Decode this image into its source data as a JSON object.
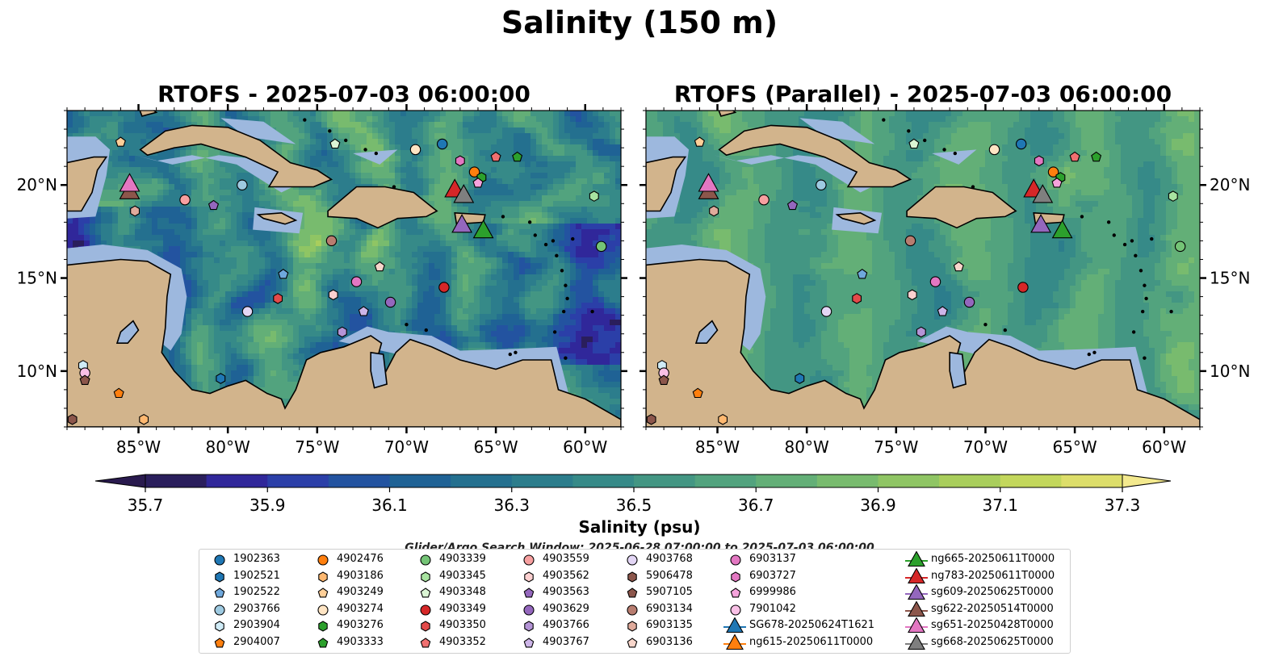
{
  "title": "Salinity (150 m)",
  "panels": [
    {
      "title": "RTOFS - 2025-07-03 06:00:00"
    },
    {
      "title": "RTOFS (Parallel) - 2025-07-03 06:00:00"
    }
  ],
  "map": {
    "lon_range": [
      -89,
      -58
    ],
    "lat_range": [
      7,
      24
    ],
    "lon_ticks": [
      "85°W",
      "80°W",
      "75°W",
      "70°W",
      "65°W",
      "60°W"
    ],
    "lat_ticks": [
      "20°N",
      "15°N",
      "10°N"
    ],
    "land_color": "#d2b48c",
    "shelf_color": "#9db8de",
    "coastline": "black"
  },
  "colorbar": {
    "label": "Salinity (psu)",
    "range": [
      35.7,
      37.3
    ],
    "tick_labels": [
      "35.7",
      "35.9",
      "36.1",
      "36.3",
      "36.5",
      "36.7",
      "36.9",
      "37.1",
      "37.3"
    ],
    "colors": [
      "#2a1e5c",
      "#30279a",
      "#2b3fa8",
      "#2353a0",
      "#1f6295",
      "#24708f",
      "#2c7d8c",
      "#368a88",
      "#439683",
      "#52a37e",
      "#63af77",
      "#78bb6e",
      "#8fc564",
      "#a9ce5c",
      "#c3d75c",
      "#ddde6a"
    ],
    "extend_colors": {
      "min": "#291a4e",
      "max": "#f3e98e"
    }
  },
  "search_window": "Glider/Argo Search Window: 2025-06-28 07:00:00 to 2025-07-03 06:00:00",
  "legend": [
    {
      "label": "1902363",
      "marker": "circle",
      "color": "#1f77b4"
    },
    {
      "label": "1902521",
      "marker": "hexagon",
      "color": "#1f77b4"
    },
    {
      "label": "1902522",
      "marker": "pentagon",
      "color": "#6fa8dc"
    },
    {
      "label": "2903766",
      "marker": "circle",
      "color": "#9ecae1"
    },
    {
      "label": "2903904",
      "marker": "hexagon",
      "color": "#d0ecf7"
    },
    {
      "label": "2904007",
      "marker": "pentagon",
      "color": "#ff7f0e"
    },
    {
      "label": "4902476",
      "marker": "circle",
      "color": "#ff7f0e"
    },
    {
      "label": "4903186",
      "marker": "hexagon",
      "color": "#ffb870"
    },
    {
      "label": "4903249",
      "marker": "pentagon",
      "color": "#ffcf98"
    },
    {
      "label": "4903274",
      "marker": "circle",
      "color": "#ffe5c4"
    },
    {
      "label": "4903276",
      "marker": "hexagon",
      "color": "#2ca02c"
    },
    {
      "label": "4903333",
      "marker": "pentagon",
      "color": "#2ca02c"
    },
    {
      "label": "4903339",
      "marker": "circle",
      "color": "#74c476"
    },
    {
      "label": "4903345",
      "marker": "hexagon",
      "color": "#a8e3a0"
    },
    {
      "label": "4903348",
      "marker": "pentagon",
      "color": "#dbf5d4"
    },
    {
      "label": "4903349",
      "marker": "circle",
      "color": "#d62728"
    },
    {
      "label": "4903350",
      "marker": "hexagon",
      "color": "#e34a4a"
    },
    {
      "label": "4903352",
      "marker": "pentagon",
      "color": "#f07070"
    },
    {
      "label": "4903559",
      "marker": "circle",
      "color": "#f7a0a0"
    },
    {
      "label": "4903562",
      "marker": "hexagon",
      "color": "#fcd0d0"
    },
    {
      "label": "4903563",
      "marker": "pentagon",
      "color": "#9467bd"
    },
    {
      "label": "4903629",
      "marker": "circle",
      "color": "#9467bd"
    },
    {
      "label": "4903766",
      "marker": "hexagon",
      "color": "#b494d6"
    },
    {
      "label": "4903767",
      "marker": "pentagon",
      "color": "#cdb5e8"
    },
    {
      "label": "4903768",
      "marker": "circle",
      "color": "#e3d6f5"
    },
    {
      "label": "5906478",
      "marker": "hexagon",
      "color": "#8c564b"
    },
    {
      "label": "5907105",
      "marker": "pentagon",
      "color": "#8c564b"
    },
    {
      "label": "6903134",
      "marker": "circle",
      "color": "#b87d70"
    },
    {
      "label": "6903135",
      "marker": "hexagon",
      "color": "#e0ab9c"
    },
    {
      "label": "6903136",
      "marker": "pentagon",
      "color": "#f8d6cb"
    },
    {
      "label": "6903137",
      "marker": "circle",
      "color": "#e377c2"
    },
    {
      "label": "6903727",
      "marker": "hexagon",
      "color": "#e377c2"
    },
    {
      "label": "6999986",
      "marker": "pentagon",
      "color": "#f5a3dc"
    },
    {
      "label": "7901042",
      "marker": "circle",
      "color": "#f9c0e6"
    },
    {
      "label": "SG678-20250624T1621",
      "marker": "triangle",
      "color": "#1f77b4"
    },
    {
      "label": "ng615-20250611T0000",
      "marker": "triangle",
      "color": "#ff7f0e"
    },
    {
      "label": "ng665-20250611T0000",
      "marker": "triangle",
      "color": "#2ca02c"
    },
    {
      "label": "ng783-20250611T0000",
      "marker": "triangle",
      "color": "#d62728"
    },
    {
      "label": "sg609-20250625T0000",
      "marker": "triangle",
      "color": "#9467bd"
    },
    {
      "label": "sg622-20250514T0000",
      "marker": "triangle",
      "color": "#8c564b"
    },
    {
      "label": "sg651-20250428T0000",
      "marker": "triangle",
      "color": "#e377c2"
    },
    {
      "label": "sg668-20250625T0000",
      "marker": "triangle",
      "color": "#7f7f7f"
    }
  ],
  "observations": [
    {
      "id": "1902363",
      "lon": -68.0,
      "lat": 22.2
    },
    {
      "id": "4903348",
      "lon": -74.0,
      "lat": 22.2
    },
    {
      "id": "4903274",
      "lon": -69.5,
      "lat": 21.9
    },
    {
      "id": "4903249",
      "lon": -86.0,
      "lat": 22.3
    },
    {
      "id": "4903352",
      "lon": -65.0,
      "lat": 21.5
    },
    {
      "id": "4903333",
      "lon": -63.8,
      "lat": 21.5
    },
    {
      "id": "6903727",
      "lon": -67.0,
      "lat": 21.3
    },
    {
      "id": "4902476",
      "lon": -66.2,
      "lat": 20.7
    },
    {
      "id": "4903276",
      "lon": -65.8,
      "lat": 20.4
    },
    {
      "id": "6999986",
      "lon": -66.0,
      "lat": 20.1
    },
    {
      "id": "2903766",
      "lon": -79.2,
      "lat": 20.0
    },
    {
      "id": "4903559",
      "lon": -82.4,
      "lat": 19.2
    },
    {
      "id": "4903563",
      "lon": -80.8,
      "lat": 18.9
    },
    {
      "id": "6903135",
      "lon": -85.2,
      "lat": 18.6
    },
    {
      "id": "4903345",
      "lon": -59.5,
      "lat": 19.4
    },
    {
      "id": "6903134",
      "lon": -74.2,
      "lat": 17.0
    },
    {
      "id": "4903339",
      "lon": -59.1,
      "lat": 16.7
    },
    {
      "id": "6903136",
      "lon": -71.5,
      "lat": 15.6
    },
    {
      "id": "1902522",
      "lon": -76.9,
      "lat": 15.2
    },
    {
      "id": "6903137",
      "lon": -72.8,
      "lat": 14.8
    },
    {
      "id": "4903349",
      "lon": -67.9,
      "lat": 14.5
    },
    {
      "id": "4903350",
      "lon": -77.2,
      "lat": 13.9
    },
    {
      "id": "4903562",
      "lon": -74.1,
      "lat": 14.1
    },
    {
      "id": "4903629",
      "lon": -70.9,
      "lat": 13.7
    },
    {
      "id": "4903768",
      "lon": -78.9,
      "lat": 13.2
    },
    {
      "id": "4903767",
      "lon": -72.4,
      "lat": 13.2
    },
    {
      "id": "4903766",
      "lon": -73.6,
      "lat": 12.1
    },
    {
      "id": "2903904",
      "lon": -88.1,
      "lat": 10.3
    },
    {
      "id": "7901042",
      "lon": -88.0,
      "lat": 9.9
    },
    {
      "id": "5907105",
      "lon": -88.0,
      "lat": 9.5
    },
    {
      "id": "1902521",
      "lon": -80.4,
      "lat": 9.6
    },
    {
      "id": "2904007",
      "lon": -86.1,
      "lat": 8.8
    },
    {
      "id": "4903186",
      "lon": -84.7,
      "lat": 7.4
    },
    {
      "id": "5906478",
      "lon": -88.7,
      "lat": 7.4
    },
    {
      "id": "sg622-20250514T0000",
      "lon": -85.5,
      "lat": 19.6
    },
    {
      "id": "sg651-20250428T0000",
      "lon": -85.5,
      "lat": 20.0
    },
    {
      "id": "ng783-20250611T0000",
      "lon": -67.3,
      "lat": 19.7
    },
    {
      "id": "sg668-20250625T0000",
      "lon": -66.8,
      "lat": 19.4
    },
    {
      "id": "sg609-20250625T0000",
      "lon": -66.9,
      "lat": 17.8
    },
    {
      "id": "ng665-20250611T0000",
      "lon": -65.7,
      "lat": 17.5
    }
  ]
}
